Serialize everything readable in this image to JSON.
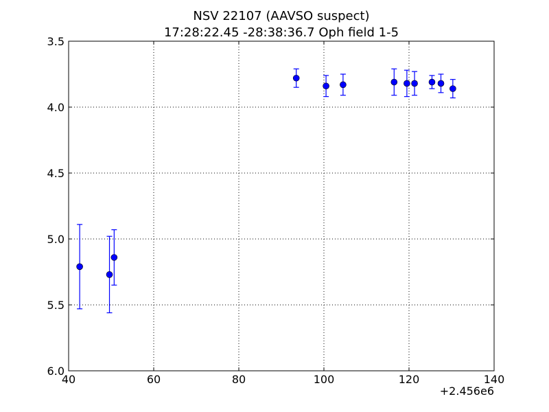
{
  "chart_data": {
    "type": "scatter",
    "title": "NSV 22107 (AAVSO suspect)",
    "subtitle": "17:28:22.45 -28:38:36.7 Oph field 1-5",
    "xlabel": "",
    "ylabel": "",
    "x_offset_label": "+2.456e6",
    "xlim": [
      40,
      140
    ],
    "ylim": [
      6.0,
      3.5
    ],
    "y_inverted": true,
    "grid": true,
    "x_ticks": [
      "40",
      "60",
      "80",
      "100",
      "120",
      "140"
    ],
    "y_ticks": [
      "3.5",
      "4.0",
      "4.5",
      "5.0",
      "5.5",
      "6.0"
    ],
    "colors": {
      "series": "#0000ff",
      "axes": "#000000",
      "grid": "#000000"
    },
    "series": [
      {
        "points": [
          {
            "x": 42.6,
            "y": 5.21,
            "err": 0.32
          },
          {
            "x": 49.6,
            "y": 5.27,
            "err": 0.29
          },
          {
            "x": 50.7,
            "y": 5.14,
            "err": 0.21
          },
          {
            "x": 93.5,
            "y": 3.78,
            "err": 0.07
          },
          {
            "x": 100.5,
            "y": 3.84,
            "err": 0.08
          },
          {
            "x": 104.5,
            "y": 3.83,
            "err": 0.08
          },
          {
            "x": 116.5,
            "y": 3.81,
            "err": 0.1
          },
          {
            "x": 119.5,
            "y": 3.82,
            "err": 0.1
          },
          {
            "x": 121.3,
            "y": 3.82,
            "err": 0.09
          },
          {
            "x": 125.4,
            "y": 3.81,
            "err": 0.05
          },
          {
            "x": 127.5,
            "y": 3.82,
            "err": 0.07
          },
          {
            "x": 130.3,
            "y": 3.86,
            "err": 0.07
          }
        ]
      }
    ]
  }
}
